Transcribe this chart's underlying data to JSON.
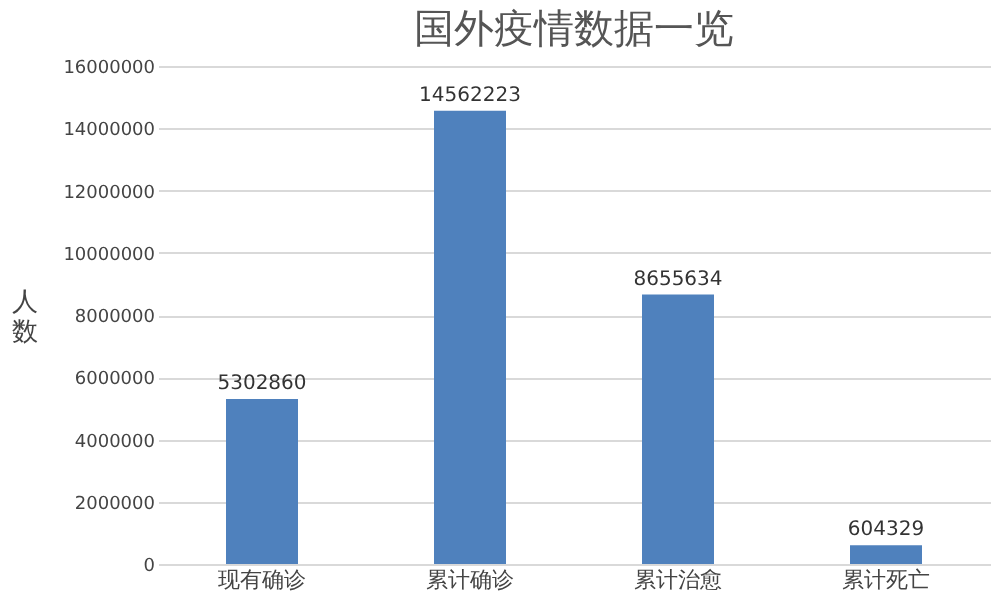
{
  "chart_data": {
    "type": "bar",
    "title": "国外疫情数据一览",
    "ylabel": "人数",
    "categories": [
      "现有确诊",
      "累计确诊",
      "累计治愈",
      "累计死亡"
    ],
    "values": [
      5302860,
      14562223,
      8655634,
      604329
    ],
    "color": "#4f81bd",
    "ylim": [
      0,
      16000000
    ],
    "yticks": [
      0,
      2000000,
      4000000,
      6000000,
      8000000,
      10000000,
      12000000,
      14000000,
      16000000
    ],
    "grid": "y",
    "data_labels": true
  }
}
